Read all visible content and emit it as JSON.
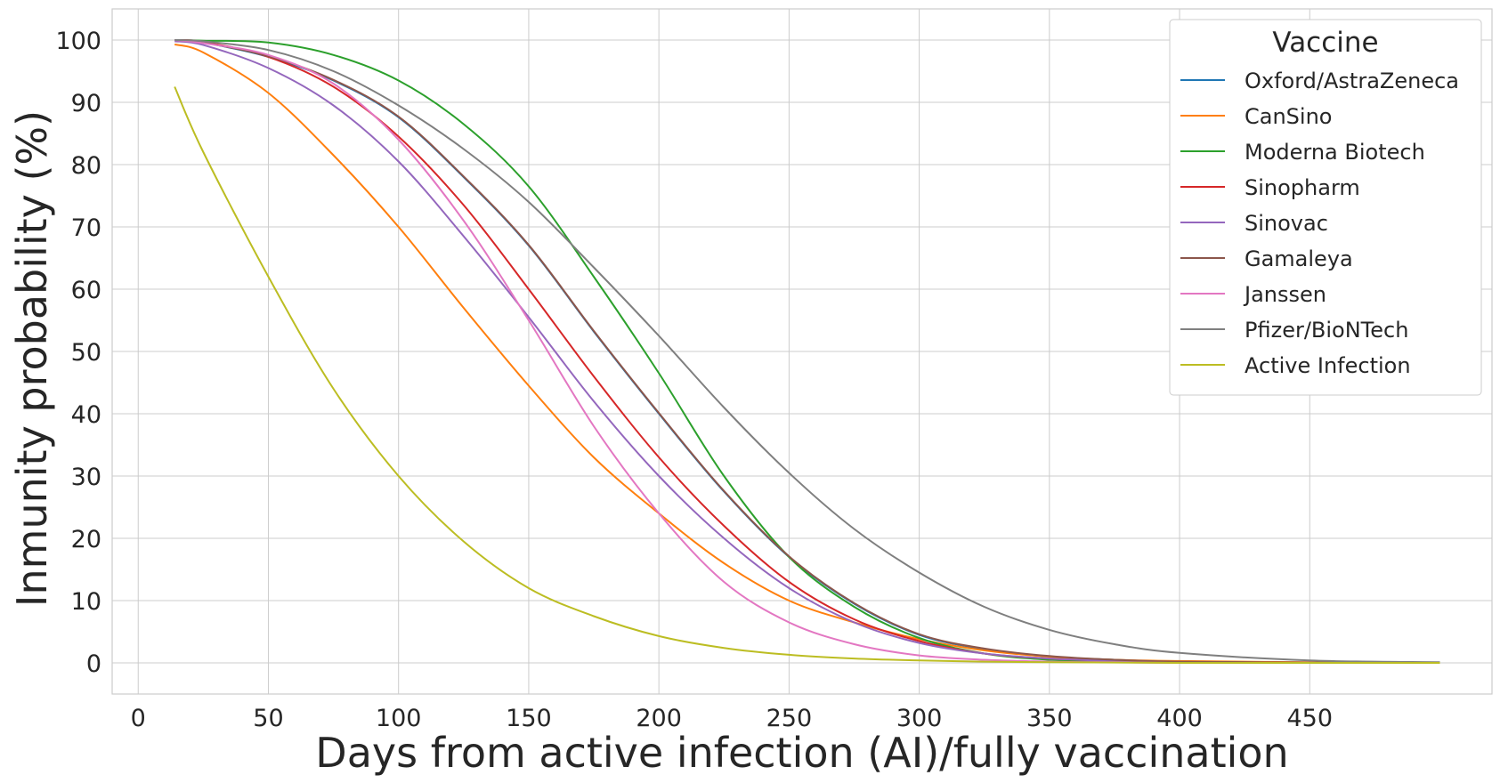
{
  "chart_data": {
    "type": "line",
    "xlabel": "Days from active infection (AI)/fully vaccination",
    "ylabel": "Inmunity probability (%)",
    "xlim": [
      -10,
      520
    ],
    "ylim": [
      -5,
      105
    ],
    "xticks": [
      0,
      50,
      100,
      150,
      200,
      250,
      300,
      350,
      400,
      450
    ],
    "yticks": [
      0,
      10,
      20,
      30,
      40,
      50,
      60,
      70,
      80,
      90,
      100
    ],
    "grid": true,
    "legend": {
      "title": "Vaccine",
      "placement": "top-right"
    },
    "x": [
      14,
      25,
      50,
      75,
      100,
      125,
      150,
      175,
      200,
      225,
      250,
      275,
      300,
      325,
      350,
      375,
      400,
      450,
      500
    ],
    "series": [
      {
        "name": "Oxford/AstraZeneca",
        "color": "#1f77b4",
        "values": [
          100,
          99.6,
          97.3,
          93.5,
          87.6,
          78.0,
          67.0,
          53.2,
          40.0,
          27.5,
          17.0,
          9.5,
          4.5,
          2.2,
          1.0,
          0.5,
          0.2,
          0.05,
          0
        ]
      },
      {
        "name": "CanSino",
        "color": "#ff7f0e",
        "values": [
          99.3,
          98.0,
          91.5,
          81.5,
          70.0,
          57.0,
          44.5,
          33.0,
          24.0,
          16.0,
          10.0,
          6.5,
          3.8,
          2.0,
          1.0,
          0.5,
          0.3,
          0.1,
          0
        ]
      },
      {
        "name": "Moderna Biotech",
        "color": "#2ca02c",
        "values": [
          100,
          99.9,
          99.6,
          97.6,
          93.5,
          86.5,
          76.5,
          62.0,
          46.5,
          30.0,
          17.0,
          9.0,
          4.0,
          1.5,
          0.5,
          0.2,
          0.1,
          0,
          0
        ]
      },
      {
        "name": "Sinopharm",
        "color": "#d62728",
        "values": [
          100,
          99.7,
          97.3,
          92.5,
          84.5,
          73.5,
          60.0,
          46.0,
          33.0,
          22.0,
          13.0,
          7.0,
          3.5,
          1.5,
          0.7,
          0.3,
          0.1,
          0,
          0
        ]
      },
      {
        "name": "Sinovac",
        "color": "#9467bd",
        "values": [
          99.8,
          99.2,
          95.5,
          89.5,
          80.5,
          68.5,
          55.5,
          42.0,
          30.0,
          20.0,
          12.0,
          6.5,
          3.2,
          1.5,
          0.7,
          0.3,
          0.1,
          0,
          0
        ]
      },
      {
        "name": "Gamaleya",
        "color": "#8c564b",
        "values": [
          100,
          99.6,
          97.4,
          93.6,
          87.7,
          78.1,
          67.1,
          53.3,
          40.1,
          27.6,
          17.1,
          9.6,
          4.6,
          2.3,
          1.1,
          0.5,
          0.2,
          0.05,
          0
        ]
      },
      {
        "name": "Janssen",
        "color": "#e377c2",
        "values": [
          100,
          99.5,
          97.6,
          93.0,
          84.0,
          71.0,
          55.0,
          38.0,
          24.0,
          13.0,
          6.5,
          3.0,
          1.2,
          0.5,
          0.2,
          0.1,
          0,
          0,
          0
        ]
      },
      {
        "name": "Pfizer/BioNTech",
        "color": "#7f7f7f",
        "values": [
          100,
          99.8,
          98.4,
          95.0,
          89.5,
          82.5,
          74.0,
          63.5,
          52.5,
          41.0,
          30.5,
          21.5,
          14.5,
          9.0,
          5.3,
          3.0,
          1.6,
          0.4,
          0.1
        ]
      },
      {
        "name": "Active Infection",
        "color": "#bcbd22",
        "values": [
          92.5,
          82.0,
          62.0,
          44.0,
          30.0,
          19.5,
          12.0,
          7.5,
          4.3,
          2.4,
          1.3,
          0.7,
          0.4,
          0.2,
          0.1,
          0.05,
          0,
          0,
          0
        ]
      }
    ]
  }
}
